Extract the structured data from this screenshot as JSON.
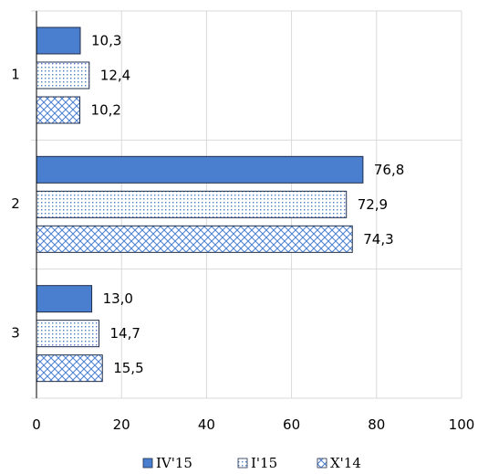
{
  "chart_data": {
    "type": "bar",
    "orientation": "horizontal",
    "categories": [
      "1",
      "2",
      "3"
    ],
    "series": [
      {
        "name": "IV'15",
        "values": [
          10.3,
          76.8,
          13.0
        ],
        "labels": [
          "10,3",
          "76,8",
          "13,0"
        ],
        "style": "solid"
      },
      {
        "name": "I'15",
        "values": [
          12.4,
          72.9,
          14.7
        ],
        "labels": [
          "12,4",
          "72,9",
          "14,7"
        ],
        "style": "dots"
      },
      {
        "name": "X'14",
        "values": [
          10.2,
          74.3,
          15.5
        ],
        "labels": [
          "10,2",
          "74,3",
          "15,5"
        ],
        "style": "crosshatch"
      }
    ],
    "xlim": [
      0,
      100
    ],
    "xticks": [
      0,
      20,
      40,
      60,
      80,
      100
    ],
    "title": "",
    "xlabel": "",
    "ylabel": "",
    "grid": "vertical",
    "legend_position": "bottom"
  },
  "colors": {
    "bar_fill": "#4a7fd0",
    "bar_stroke": "#1f2d4a",
    "pattern_color": "#4a7fd0",
    "grid": "#d9d9d9",
    "axis": "#000000"
  }
}
